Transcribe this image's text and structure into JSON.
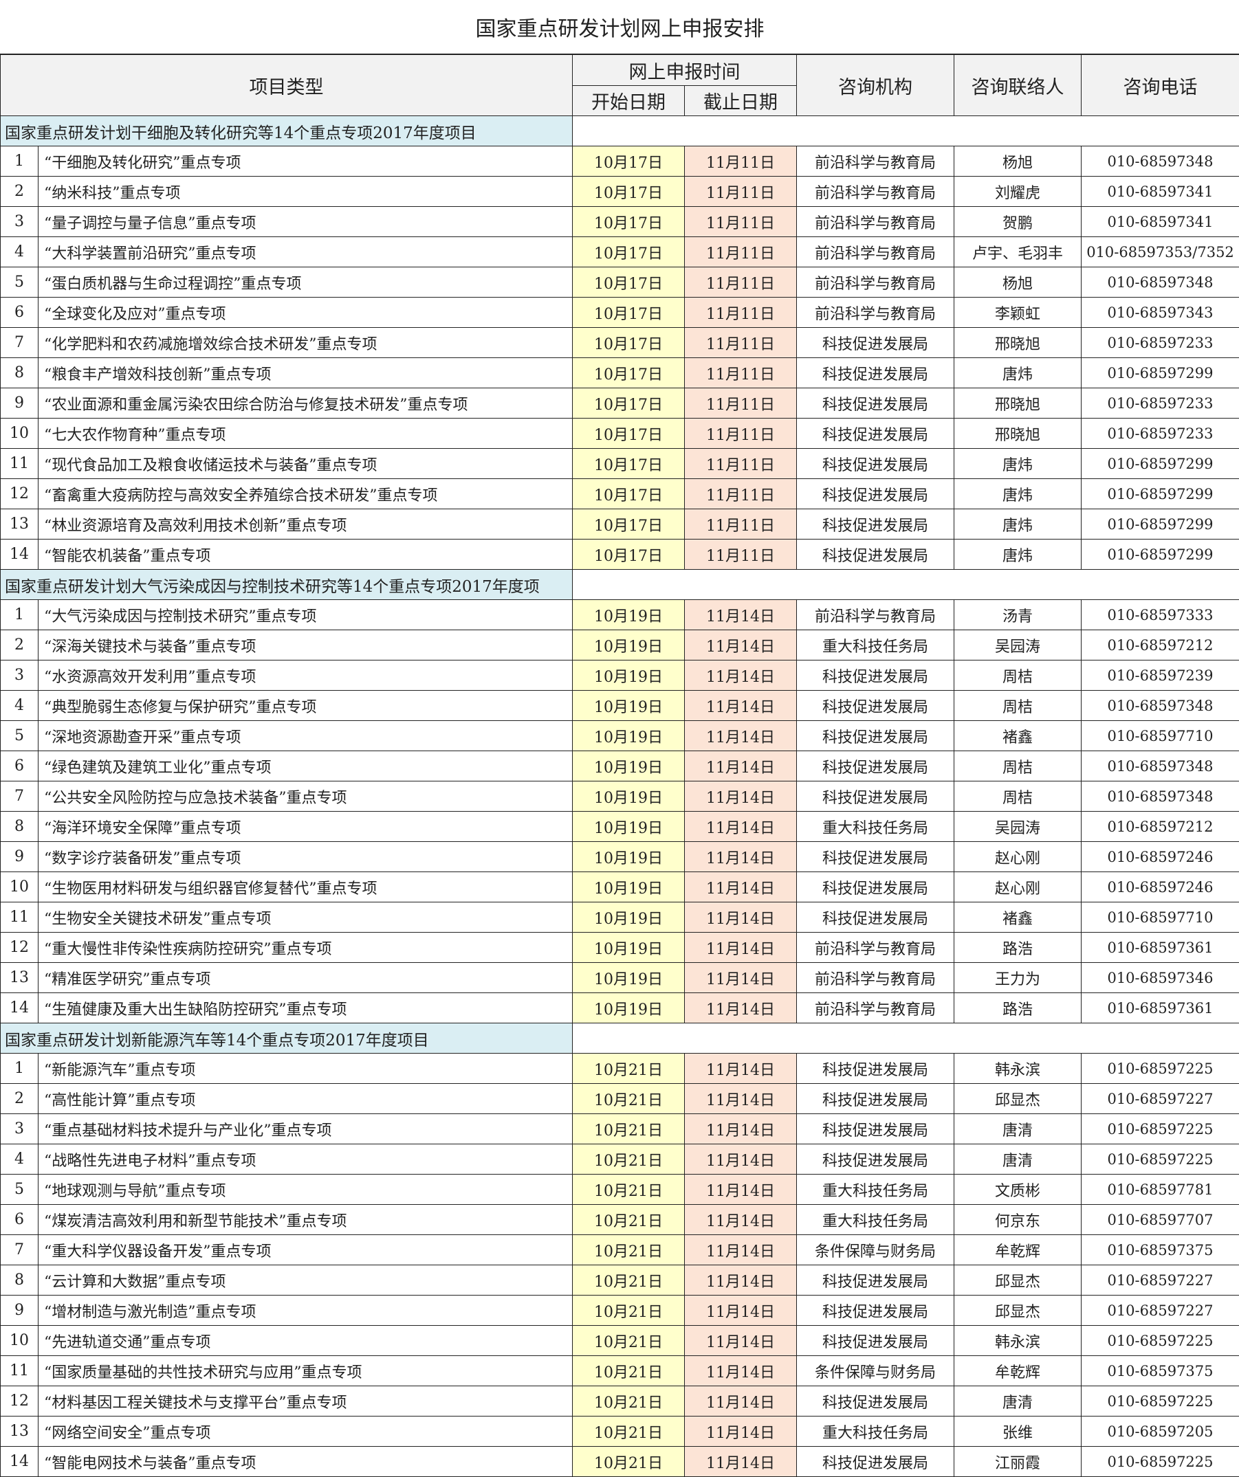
{
  "title": "国家重点研发计划网上申报安排",
  "header": {
    "project_type": "项目类型",
    "online_time": "网上申报时间",
    "start_date": "开始日期",
    "end_date": "截止日期",
    "agency": "咨询机构",
    "contact": "咨询联络人",
    "phone": "咨询电话"
  },
  "colors": {
    "start_bg": "#ffffcc",
    "end_bg": "#fce4d6",
    "section_bg": "#daeef3",
    "header_bg": "#f2f2f2"
  },
  "sections": [
    {
      "title": "国家重点研发计划干细胞及转化研究等14个重点专项2017年度项目",
      "rows": [
        {
          "no": "1",
          "name": "“干细胞及转化研究”重点专项",
          "start": "10月17日",
          "end": "11月11日",
          "agency": "前沿科学与教育局",
          "contact": "杨旭",
          "phone": "010-68597348"
        },
        {
          "no": "2",
          "name": "“纳米科技”重点专项",
          "start": "10月17日",
          "end": "11月11日",
          "agency": "前沿科学与教育局",
          "contact": "刘耀虎",
          "phone": "010-68597341"
        },
        {
          "no": "3",
          "name": "“量子调控与量子信息”重点专项",
          "start": "10月17日",
          "end": "11月11日",
          "agency": "前沿科学与教育局",
          "contact": "贺鹏",
          "phone": "010-68597341"
        },
        {
          "no": "4",
          "name": "“大科学装置前沿研究”重点专项",
          "start": "10月17日",
          "end": "11月11日",
          "agency": "前沿科学与教育局",
          "contact": "卢宇、毛羽丰",
          "phone": "010-68597353/7352"
        },
        {
          "no": "5",
          "name": "“蛋白质机器与生命过程调控”重点专项",
          "start": "10月17日",
          "end": "11月11日",
          "agency": "前沿科学与教育局",
          "contact": "杨旭",
          "phone": "010-68597348"
        },
        {
          "no": "6",
          "name": "“全球变化及应对”重点专项",
          "start": "10月17日",
          "end": "11月11日",
          "agency": "前沿科学与教育局",
          "contact": "李颖虹",
          "phone": "010-68597343"
        },
        {
          "no": "7",
          "name": "“化学肥料和农药减施增效综合技术研发”重点专项",
          "start": "10月17日",
          "end": "11月11日",
          "agency": "科技促进发展局",
          "contact": "邢晓旭",
          "phone": "010-68597233"
        },
        {
          "no": "8",
          "name": "“粮食丰产增效科技创新”重点专项",
          "start": "10月17日",
          "end": "11月11日",
          "agency": "科技促进发展局",
          "contact": "唐炜",
          "phone": "010-68597299"
        },
        {
          "no": "9",
          "name": "“农业面源和重金属污染农田综合防治与修复技术研发”重点专项",
          "start": "10月17日",
          "end": "11月11日",
          "agency": "科技促进发展局",
          "contact": "邢晓旭",
          "phone": "010-68597233"
        },
        {
          "no": "10",
          "name": "“七大农作物育种”重点专项",
          "start": "10月17日",
          "end": "11月11日",
          "agency": "科技促进发展局",
          "contact": "邢晓旭",
          "phone": "010-68597233"
        },
        {
          "no": "11",
          "name": "“现代食品加工及粮食收储运技术与装备”重点专项",
          "start": "10月17日",
          "end": "11月11日",
          "agency": "科技促进发展局",
          "contact": "唐炜",
          "phone": "010-68597299"
        },
        {
          "no": "12",
          "name": "“畜禽重大疫病防控与高效安全养殖综合技术研发”重点专项",
          "start": "10月17日",
          "end": "11月11日",
          "agency": "科技促进发展局",
          "contact": "唐炜",
          "phone": "010-68597299"
        },
        {
          "no": "13",
          "name": "“林业资源培育及高效利用技术创新”重点专项",
          "start": "10月17日",
          "end": "11月11日",
          "agency": "科技促进发展局",
          "contact": "唐炜",
          "phone": "010-68597299"
        },
        {
          "no": "14",
          "name": "“智能农机装备”重点专项",
          "start": "10月17日",
          "end": "11月11日",
          "agency": "科技促进发展局",
          "contact": "唐炜",
          "phone": "010-68597299"
        }
      ]
    },
    {
      "title": "国家重点研发计划大气污染成因与控制技术研究等14个重点专项2017年度项",
      "rows": [
        {
          "no": "1",
          "name": "“大气污染成因与控制技术研究”重点专项",
          "start": "10月19日",
          "end": "11月14日",
          "agency": "前沿科学与教育局",
          "contact": "汤青",
          "phone": "010-68597333"
        },
        {
          "no": "2",
          "name": "“深海关键技术与装备”重点专项",
          "start": "10月19日",
          "end": "11月14日",
          "agency": "重大科技任务局",
          "contact": "吴园涛",
          "phone": "010-68597212"
        },
        {
          "no": "3",
          "name": "“水资源高效开发利用”重点专项",
          "start": "10月19日",
          "end": "11月14日",
          "agency": "科技促进发展局",
          "contact": "周桔",
          "phone": "010-68597239"
        },
        {
          "no": "4",
          "name": "“典型脆弱生态修复与保护研究”重点专项",
          "start": "10月19日",
          "end": "11月14日",
          "agency": "科技促进发展局",
          "contact": "周桔",
          "phone": "010-68597348"
        },
        {
          "no": "5",
          "name": "“深地资源勘查开采”重点专项",
          "start": "10月19日",
          "end": "11月14日",
          "agency": "科技促进发展局",
          "contact": "褚鑫",
          "phone": "010-68597710"
        },
        {
          "no": "6",
          "name": "“绿色建筑及建筑工业化”重点专项",
          "start": "10月19日",
          "end": "11月14日",
          "agency": "科技促进发展局",
          "contact": "周桔",
          "phone": "010-68597348"
        },
        {
          "no": "7",
          "name": "“公共安全风险防控与应急技术装备”重点专项",
          "start": "10月19日",
          "end": "11月14日",
          "agency": "科技促进发展局",
          "contact": "周桔",
          "phone": "010-68597348"
        },
        {
          "no": "8",
          "name": "“海洋环境安全保障”重点专项",
          "start": "10月19日",
          "end": "11月14日",
          "agency": "重大科技任务局",
          "contact": "吴园涛",
          "phone": "010-68597212"
        },
        {
          "no": "9",
          "name": "“数字诊疗装备研发”重点专项",
          "start": "10月19日",
          "end": "11月14日",
          "agency": "科技促进发展局",
          "contact": "赵心刚",
          "phone": "010-68597246"
        },
        {
          "no": "10",
          "name": "“生物医用材料研发与组织器官修复替代”重点专项",
          "start": "10月19日",
          "end": "11月14日",
          "agency": "科技促进发展局",
          "contact": "赵心刚",
          "phone": "010-68597246"
        },
        {
          "no": "11",
          "name": "“生物安全关键技术研发”重点专项",
          "start": "10月19日",
          "end": "11月14日",
          "agency": "科技促进发展局",
          "contact": "褚鑫",
          "phone": "010-68597710"
        },
        {
          "no": "12",
          "name": "“重大慢性非传染性疾病防控研究”重点专项",
          "start": "10月19日",
          "end": "11月14日",
          "agency": "前沿科学与教育局",
          "contact": "路浩",
          "phone": "010-68597361"
        },
        {
          "no": "13",
          "name": "“精准医学研究”重点专项",
          "start": "10月19日",
          "end": "11月14日",
          "agency": "前沿科学与教育局",
          "contact": "王力为",
          "phone": "010-68597346"
        },
        {
          "no": "14",
          "name": "“生殖健康及重大出生缺陷防控研究”重点专项",
          "start": "10月19日",
          "end": "11月14日",
          "agency": "前沿科学与教育局",
          "contact": "路浩",
          "phone": "010-68597361"
        }
      ]
    },
    {
      "title": "国家重点研发计划新能源汽车等14个重点专项2017年度项目",
      "rows": [
        {
          "no": "1",
          "name": "“新能源汽车”重点专项",
          "start": "10月21日",
          "end": "11月14日",
          "agency": "科技促进发展局",
          "contact": "韩永滨",
          "phone": "010-68597225"
        },
        {
          "no": "2",
          "name": "“高性能计算”重点专项",
          "start": "10月21日",
          "end": "11月14日",
          "agency": "科技促进发展局",
          "contact": "邱显杰",
          "phone": "010-68597227"
        },
        {
          "no": "3",
          "name": "“重点基础材料技术提升与产业化”重点专项",
          "start": "10月21日",
          "end": "11月14日",
          "agency": "科技促进发展局",
          "contact": "唐清",
          "phone": "010-68597225"
        },
        {
          "no": "4",
          "name": "“战略性先进电子材料”重点专项",
          "start": "10月21日",
          "end": "11月14日",
          "agency": "科技促进发展局",
          "contact": "唐清",
          "phone": "010-68597225"
        },
        {
          "no": "5",
          "name": "“地球观测与导航”重点专项",
          "start": "10月21日",
          "end": "11月14日",
          "agency": "重大科技任务局",
          "contact": "文质彬",
          "phone": "010-68597781"
        },
        {
          "no": "6",
          "name": "“煤炭清洁高效利用和新型节能技术”重点专项",
          "start": "10月21日",
          "end": "11月14日",
          "agency": "重大科技任务局",
          "contact": "何京东",
          "phone": "010-68597707"
        },
        {
          "no": "7",
          "name": "“重大科学仪器设备开发”重点专项",
          "start": "10月21日",
          "end": "11月14日",
          "agency": "条件保障与财务局",
          "contact": "牟乾辉",
          "phone": "010-68597375"
        },
        {
          "no": "8",
          "name": "“云计算和大数据”重点专项",
          "start": "10月21日",
          "end": "11月14日",
          "agency": "科技促进发展局",
          "contact": "邱显杰",
          "phone": "010-68597227"
        },
        {
          "no": "9",
          "name": "“增材制造与激光制造”重点专项",
          "start": "10月21日",
          "end": "11月14日",
          "agency": "科技促进发展局",
          "contact": "邱显杰",
          "phone": "010-68597227"
        },
        {
          "no": "10",
          "name": "“先进轨道交通”重点专项",
          "start": "10月21日",
          "end": "11月14日",
          "agency": "科技促进发展局",
          "contact": "韩永滨",
          "phone": "010-68597225"
        },
        {
          "no": "11",
          "name": "“国家质量基础的共性技术研究与应用”重点专项",
          "start": "10月21日",
          "end": "11月14日",
          "agency": "条件保障与财务局",
          "contact": "牟乾辉",
          "phone": "010-68597375"
        },
        {
          "no": "12",
          "name": "“材料基因工程关键技术与支撑平台”重点专项",
          "start": "10月21日",
          "end": "11月14日",
          "agency": "科技促进发展局",
          "contact": "唐清",
          "phone": "010-68597225"
        },
        {
          "no": "13",
          "name": "“网络空间安全”重点专项",
          "start": "10月21日",
          "end": "11月14日",
          "agency": "重大科技任务局",
          "contact": "张维",
          "phone": "010-68597205"
        },
        {
          "no": "14",
          "name": "“智能电网技术与装备”重点专项",
          "start": "10月21日",
          "end": "11月14日",
          "agency": "科技促进发展局",
          "contact": "江丽霞",
          "phone": "010-68597225"
        }
      ]
    }
  ]
}
